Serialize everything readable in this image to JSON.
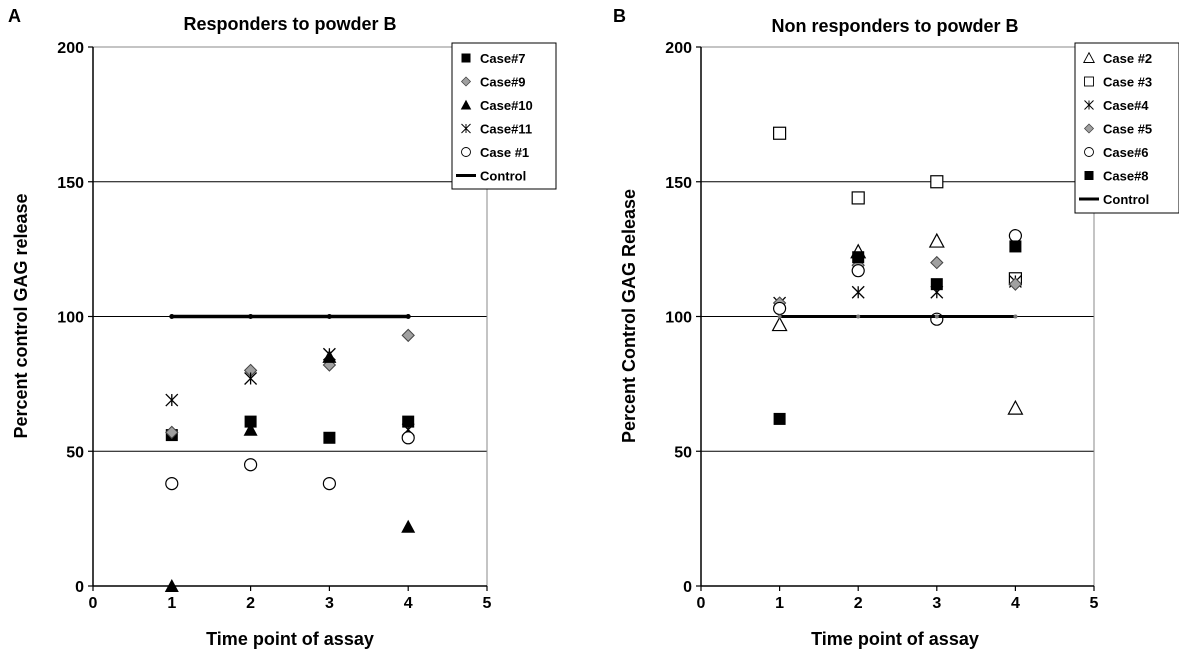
{
  "chart_data": [
    {
      "type": "scatter",
      "panel_label": "A",
      "title": "Responders to powder B",
      "xlabel": "Time point of assay",
      "ylabel": "Percent control GAG release",
      "xlim": [
        0,
        5
      ],
      "ylim": [
        0,
        200
      ],
      "xticks": [
        "0",
        "1",
        "2",
        "3",
        "4",
        "5"
      ],
      "yticks": [
        "0",
        "50",
        "100",
        "150",
        "200"
      ],
      "horizontal_gridlines": true,
      "legend_position": "top-right",
      "series": [
        {
          "name": "Case#7",
          "marker": "square-filled",
          "x": [
            1,
            2,
            3,
            4
          ],
          "y": [
            56,
            61,
            55,
            61
          ]
        },
        {
          "name": "Case#9",
          "marker": "diamond-gray",
          "x": [
            1,
            2,
            3,
            4
          ],
          "y": [
            57,
            80,
            82,
            93
          ]
        },
        {
          "name": "Case#10",
          "marker": "triangle-filled",
          "x": [
            1,
            2,
            3,
            4
          ],
          "y": [
            0,
            58,
            85,
            22
          ]
        },
        {
          "name": "Case#11",
          "marker": "asterisk",
          "x": [
            1,
            2,
            3,
            4
          ],
          "y": [
            69,
            77,
            86,
            58
          ]
        },
        {
          "name": "Case #1",
          "marker": "circle-open",
          "x": [
            1,
            2,
            3,
            4
          ],
          "y": [
            38,
            45,
            38,
            55
          ]
        },
        {
          "name": "Control",
          "marker": "line",
          "x": [
            1,
            2,
            3,
            4
          ],
          "y": [
            100,
            100,
            100,
            100
          ]
        }
      ]
    },
    {
      "type": "scatter",
      "panel_label": "B",
      "title": "Non responders to powder B",
      "xlabel": "Time point of assay",
      "ylabel": "Percent Control GAG Release",
      "xlim": [
        0,
        5
      ],
      "ylim": [
        0,
        200
      ],
      "xticks": [
        "0",
        "1",
        "2",
        "3",
        "4",
        "5"
      ],
      "yticks": [
        "0",
        "50",
        "100",
        "150",
        "200"
      ],
      "horizontal_gridlines": true,
      "legend_position": "top-right",
      "series": [
        {
          "name": "Case #2",
          "marker": "triangle-open",
          "x": [
            1,
            2,
            3,
            4
          ],
          "y": [
            97,
            124,
            128,
            66
          ]
        },
        {
          "name": "Case #3",
          "marker": "square-open",
          "x": [
            1,
            2,
            3,
            4
          ],
          "y": [
            168,
            144,
            150,
            114
          ]
        },
        {
          "name": "Case#4",
          "marker": "asterisk",
          "x": [
            1,
            2,
            3,
            4
          ],
          "y": [
            105,
            109,
            109,
            113
          ]
        },
        {
          "name": "Case #5",
          "marker": "diamond-gray",
          "x": [
            1,
            2,
            3,
            4
          ],
          "y": [
            105,
            119,
            120,
            112
          ]
        },
        {
          "name": "Case#6",
          "marker": "circle-open",
          "x": [
            1,
            2,
            3,
            4
          ],
          "y": [
            103,
            117,
            99,
            130
          ]
        },
        {
          "name": "Case#8",
          "marker": "square-filled",
          "x": [
            1,
            2,
            3,
            4
          ],
          "y": [
            62,
            122,
            112,
            126
          ]
        },
        {
          "name": "Control",
          "marker": "line",
          "x": [
            1,
            2,
            3,
            4
          ],
          "y": [
            100,
            100,
            100,
            100
          ]
        }
      ]
    }
  ]
}
